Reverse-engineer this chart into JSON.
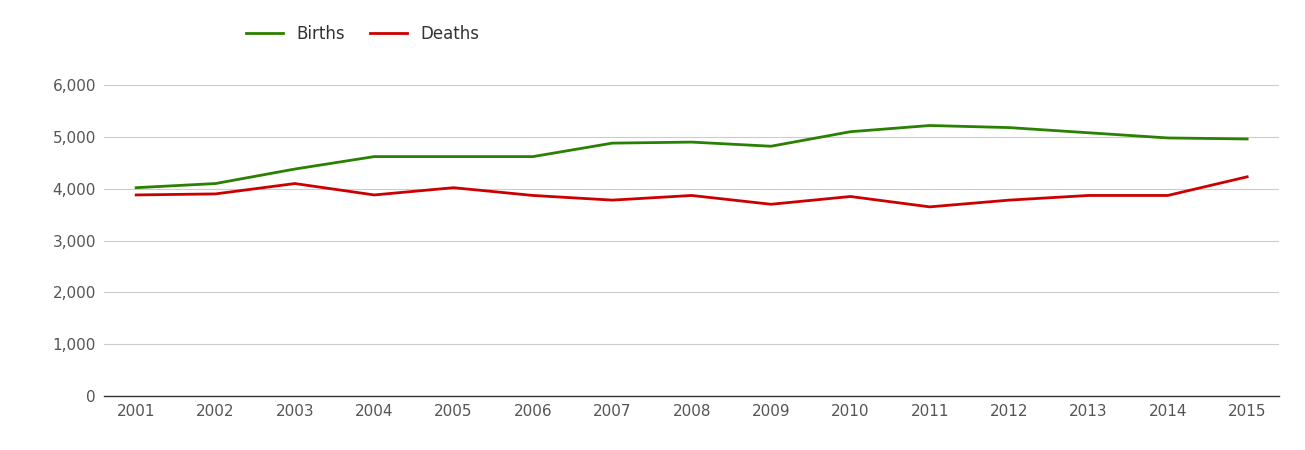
{
  "years": [
    2001,
    2002,
    2003,
    2004,
    2005,
    2006,
    2007,
    2008,
    2009,
    2010,
    2011,
    2012,
    2013,
    2014,
    2015
  ],
  "births": [
    4020,
    4100,
    4380,
    4620,
    4620,
    4620,
    4880,
    4900,
    4820,
    5100,
    5220,
    5180,
    5080,
    4980,
    4960
  ],
  "deaths": [
    3880,
    3900,
    4100,
    3880,
    4020,
    3870,
    3780,
    3870,
    3700,
    3850,
    3650,
    3780,
    3870,
    3870,
    4230
  ],
  "births_color": "#2a8000",
  "deaths_color": "#cc0000",
  "line_width": 2.0,
  "ylim": [
    0,
    6600
  ],
  "yticks": [
    0,
    1000,
    2000,
    3000,
    4000,
    5000,
    6000
  ],
  "ytick_labels": [
    "0",
    "1,000",
    "2,000",
    "3,000",
    "4,000",
    "5,000",
    "6,000"
  ],
  "grid_color": "#cccccc",
  "background_color": "#ffffff",
  "legend_births": "Births",
  "legend_deaths": "Deaths",
  "legend_fontsize": 12,
  "tick_fontsize": 11,
  "tick_color": "#555555"
}
